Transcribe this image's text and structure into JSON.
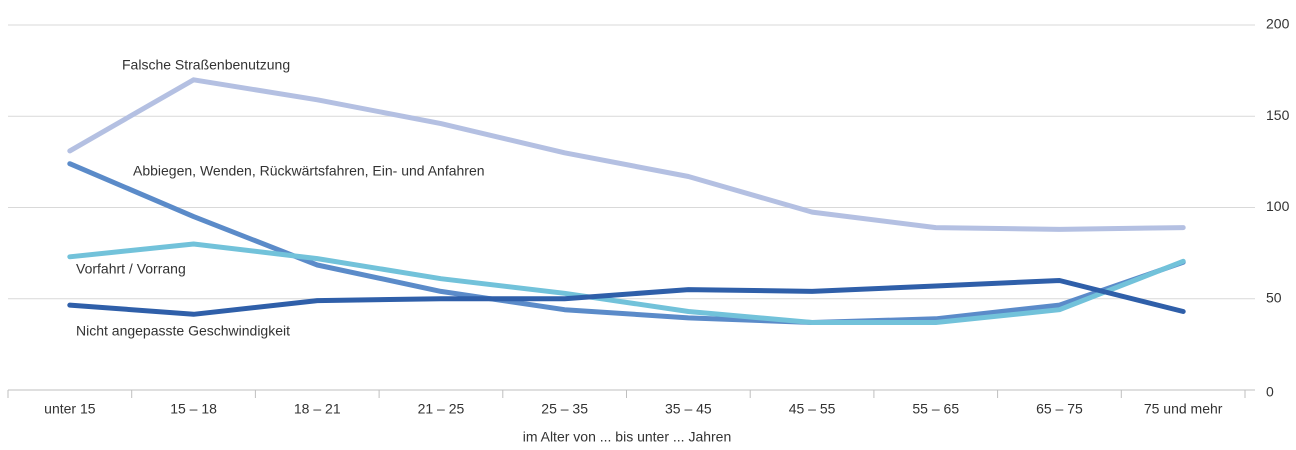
{
  "chart_data": {
    "type": "line",
    "x_label": "im Alter von ... bis unter ... Jahren",
    "categories": [
      "unter 15",
      "15 – 18",
      "18 – 21",
      "21 – 25",
      "25 – 35",
      "35 – 45",
      "45 – 55",
      "55 – 65",
      "65 – 75",
      "75 und mehr"
    ],
    "series": [
      {
        "name": "Falsche Straßenbenutzung",
        "color": "#b4c0e2",
        "values": [
          131,
          170,
          159,
          146,
          130,
          117,
          97.5,
          89,
          88,
          89
        ]
      },
      {
        "name": "Abbiegen, Wenden, Rückwärtsfahren, Ein- und Anfahren",
        "color": "#5b8bc9",
        "values": [
          124,
          95,
          68.5,
          54,
          44,
          39.5,
          37,
          39,
          46.5,
          70
        ]
      },
      {
        "name": "Vorfahrt / Vorrang",
        "color": "#72c2da",
        "values": [
          73,
          80,
          72,
          61,
          53,
          43,
          37,
          37,
          44,
          70.5
        ]
      },
      {
        "name": "Nicht angepasste Geschwindigkeit",
        "color": "#2f5fa9",
        "values": [
          46.5,
          41.5,
          49,
          50,
          50,
          55,
          54,
          57,
          60,
          43
        ]
      }
    ],
    "ylim": [
      0,
      200
    ],
    "yticks": [
      0,
      50,
      100,
      150,
      200
    ],
    "grid": true
  }
}
